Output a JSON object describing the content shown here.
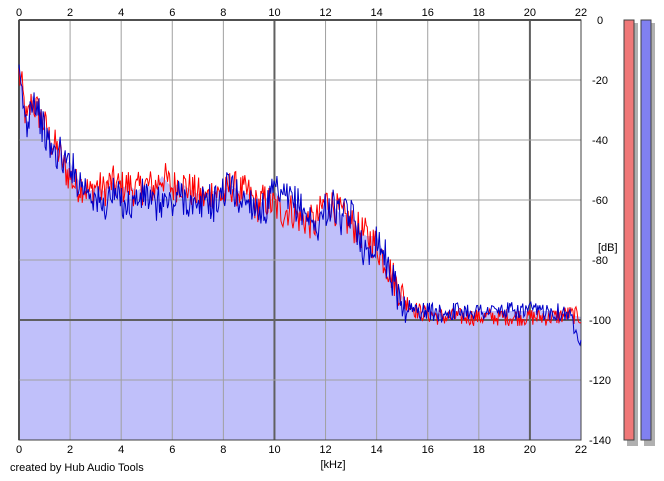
{
  "app": {
    "credit_text": "created by Hub Audio Tools"
  },
  "colors": {
    "fill": "#c0c0fa",
    "left_channel": "#ff0000",
    "right_channel": "#0000c8",
    "grid": "#a0a0a0",
    "meter_left": "#f07878",
    "meter_right": "#8080f0"
  },
  "chart_data": {
    "type": "line",
    "title": "",
    "xlabel": "[kHz]",
    "ylabel": "[dB]",
    "xlim": [
      0,
      22
    ],
    "ylim": [
      -140,
      0
    ],
    "x_ticks": [
      0,
      2,
      4,
      6,
      8,
      10,
      12,
      14,
      16,
      18,
      20,
      22
    ],
    "y_ticks": [
      0,
      -20,
      -40,
      -60,
      -80,
      -100,
      -120,
      -140
    ],
    "x_tick_labels": [
      "0",
      "2",
      "4",
      "6",
      "8",
      "10",
      "12",
      "14",
      "16",
      "18",
      "20",
      "22"
    ],
    "y_tick_labels": [
      "0",
      "-20",
      "-40",
      "-60",
      "-80",
      "-100",
      "-120",
      "-140"
    ],
    "grid": true,
    "x_tick_labels_on_top_and_bottom": true,
    "series": [
      {
        "color": "#ff0000",
        "x": [
          0.0,
          0.1,
          0.2,
          0.3,
          0.5,
          0.7,
          0.9,
          1.0,
          1.2,
          1.4,
          1.6,
          1.8,
          2.0,
          2.2,
          2.5,
          2.8,
          3.0,
          3.3,
          3.6,
          4.0,
          4.3,
          4.6,
          5.0,
          5.3,
          5.6,
          6.0,
          6.3,
          6.6,
          7.0,
          7.3,
          7.6,
          8.0,
          8.3,
          8.6,
          9.0,
          9.3,
          9.6,
          10.0,
          10.3,
          10.6,
          11.0,
          11.3,
          11.6,
          12.0,
          12.3,
          12.6,
          13.0,
          13.3,
          13.6,
          14.0,
          14.3,
          14.6,
          15.0,
          15.3,
          15.6,
          16.0,
          16.5,
          17.0,
          17.5,
          18.0,
          18.5,
          19.0,
          19.5,
          20.0,
          20.5,
          21.0,
          21.5,
          22.0
        ],
        "y": [
          -18,
          -22,
          -28,
          -35,
          -27,
          -30,
          -33,
          -35,
          -40,
          -42,
          -45,
          -50,
          -52,
          -55,
          -55,
          -58,
          -55,
          -57,
          -54,
          -56,
          -55,
          -57,
          -55,
          -56,
          -52,
          -56,
          -54,
          -56,
          -58,
          -60,
          -57,
          -59,
          -55,
          -57,
          -58,
          -62,
          -60,
          -62,
          -64,
          -63,
          -66,
          -67,
          -68,
          -60,
          -62,
          -65,
          -68,
          -70,
          -72,
          -75,
          -80,
          -85,
          -92,
          -95,
          -97,
          -98,
          -99,
          -99,
          -99,
          -99,
          -99,
          -99,
          -99,
          -99,
          -99,
          -99,
          -98,
          -99
        ]
      },
      {
        "color": "#0000c8",
        "x": [
          0.0,
          0.1,
          0.2,
          0.3,
          0.5,
          0.7,
          0.9,
          1.0,
          1.2,
          1.4,
          1.6,
          1.8,
          2.0,
          2.2,
          2.5,
          2.8,
          3.0,
          3.3,
          3.6,
          4.0,
          4.3,
          4.6,
          5.0,
          5.3,
          5.6,
          6.0,
          6.3,
          6.6,
          7.0,
          7.3,
          7.6,
          8.0,
          8.3,
          8.6,
          9.0,
          9.3,
          9.6,
          10.0,
          10.3,
          10.6,
          11.0,
          11.3,
          11.6,
          12.0,
          12.3,
          12.6,
          13.0,
          13.3,
          13.6,
          14.0,
          14.3,
          14.6,
          15.0,
          15.3,
          15.6,
          16.0,
          16.5,
          17.0,
          17.5,
          18.0,
          18.5,
          19.0,
          19.5,
          20.0,
          20.5,
          21.0,
          21.5,
          22.0
        ],
        "y": [
          -20,
          -24,
          -30,
          -36,
          -25,
          -28,
          -35,
          -38,
          -42,
          -45,
          -44,
          -48,
          -47,
          -52,
          -55,
          -57,
          -60,
          -63,
          -58,
          -60,
          -62,
          -60,
          -58,
          -63,
          -60,
          -62,
          -58,
          -60,
          -65,
          -58,
          -62,
          -57,
          -55,
          -60,
          -60,
          -62,
          -64,
          -57,
          -60,
          -60,
          -62,
          -65,
          -70,
          -63,
          -62,
          -66,
          -65,
          -70,
          -80,
          -72,
          -78,
          -86,
          -95,
          -96,
          -97,
          -97,
          -98,
          -97,
          -97,
          -97,
          -97,
          -97,
          -97,
          -97,
          -97,
          -97,
          -98,
          -106
        ]
      }
    ],
    "meters": [
      {
        "color": "#f07878",
        "level": 1.0
      },
      {
        "color": "#8080f0",
        "level": 1.0
      }
    ]
  }
}
